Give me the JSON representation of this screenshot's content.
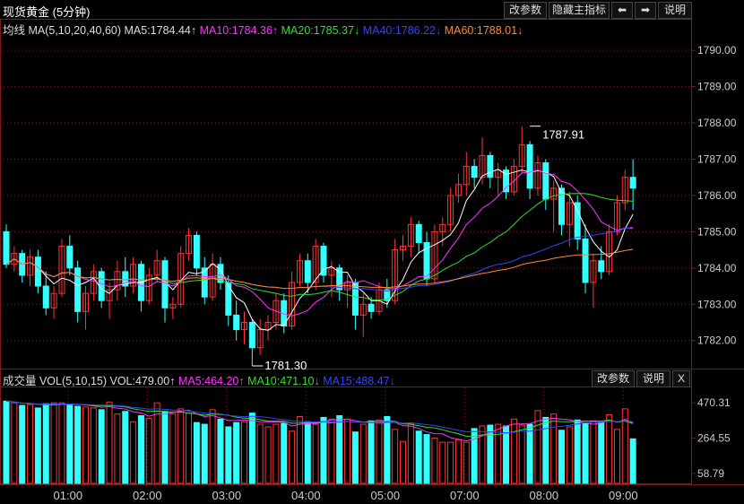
{
  "header": {
    "title": "现货黄金 (5分钟)",
    "buttons": {
      "params": "改参数",
      "hide_indicator": "隐藏主指标",
      "prev": "⬅",
      "next": "➡",
      "help": "说明"
    }
  },
  "ma_legend": {
    "prefix": "均线 MA(5,10,20,40,60)",
    "items": [
      {
        "text": "MA5:1784.44↑",
        "color": "#ffffff"
      },
      {
        "text": "MA10:1784.36↑",
        "color": "#ff33ff"
      },
      {
        "text": "MA20:1785.37↓",
        "color": "#33dd33"
      },
      {
        "text": "MA40:1786.22↓",
        "color": "#3344ff"
      },
      {
        "text": "MA60:1788.01↓",
        "color": "#ff8833"
      }
    ]
  },
  "vol_legend": {
    "prefix": "成交量 VOL(5,10,15) VOL:479.00↑",
    "items": [
      {
        "text": "MA5:464.20↑",
        "color": "#ff33ff"
      },
      {
        "text": "MA10:471.10↓",
        "color": "#33dd33"
      },
      {
        "text": "MA15:488.47↓",
        "color": "#3344ff"
      }
    ],
    "buttons": {
      "params": "改参数",
      "help": "说明",
      "close": "X"
    }
  },
  "colors": {
    "up": "#ff3333",
    "down": "#33ffff",
    "grid": "#7a1a1a",
    "axis_text": "#cccccc"
  },
  "chart_data": [
    {
      "type": "candlestick",
      "title": "现货黄金 (5分钟)",
      "ylim": [
        1781.3,
        1790.4
      ],
      "yticks": [
        "1790.00",
        "1789.00",
        "1788.00",
        "1787.00",
        "1786.00",
        "1785.00",
        "1784.00",
        "1783.00",
        "1782.00"
      ],
      "ytick_values": [
        1790,
        1789,
        1788,
        1787,
        1786,
        1785,
        1784,
        1783,
        1782
      ],
      "xticks": [
        "01:00",
        "02:00",
        "03:00",
        "04:00",
        "05:00",
        "07:00",
        "08:00",
        "09:00"
      ],
      "xtick_index": [
        8,
        18,
        28,
        38,
        48,
        58,
        68,
        78
      ],
      "annotations": [
        {
          "text": "1787.91",
          "index": 66,
          "value": 1787.91
        },
        {
          "text": "1781.30",
          "index": 31,
          "value": 1781.3
        }
      ],
      "ohlc": [
        [
          1785.0,
          1785.2,
          1784.0,
          1784.1
        ],
        [
          1784.1,
          1784.6,
          1783.9,
          1784.4
        ],
        [
          1784.4,
          1784.5,
          1783.6,
          1783.8
        ],
        [
          1783.8,
          1784.5,
          1783.5,
          1784.3
        ],
        [
          1784.3,
          1784.5,
          1783.3,
          1783.5
        ],
        [
          1783.5,
          1783.9,
          1782.7,
          1782.9
        ],
        [
          1782.9,
          1783.5,
          1782.6,
          1783.3
        ],
        [
          1783.3,
          1784.8,
          1783.2,
          1784.6
        ],
        [
          1784.6,
          1784.9,
          1783.8,
          1784.0
        ],
        [
          1784.0,
          1784.2,
          1782.5,
          1782.8
        ],
        [
          1782.8,
          1783.5,
          1782.3,
          1783.3
        ],
        [
          1783.3,
          1784.1,
          1783.1,
          1783.9
        ],
        [
          1783.9,
          1784.0,
          1782.9,
          1783.1
        ],
        [
          1783.1,
          1783.6,
          1782.6,
          1783.4
        ],
        [
          1783.4,
          1784.2,
          1783.1,
          1783.9
        ],
        [
          1783.9,
          1784.3,
          1783.2,
          1783.5
        ],
        [
          1783.5,
          1784.3,
          1783.3,
          1784.1
        ],
        [
          1784.1,
          1784.2,
          1782.8,
          1783.1
        ],
        [
          1783.1,
          1784.0,
          1783.0,
          1783.8
        ],
        [
          1783.8,
          1784.5,
          1783.6,
          1784.2
        ],
        [
          1784.2,
          1784.3,
          1782.5,
          1782.9
        ],
        [
          1782.9,
          1783.2,
          1782.6,
          1783.0
        ],
        [
          1783.0,
          1784.6,
          1782.9,
          1784.4
        ],
        [
          1784.4,
          1785.1,
          1784.2,
          1784.9
        ],
        [
          1784.9,
          1785.0,
          1783.8,
          1784.0
        ],
        [
          1784.0,
          1784.3,
          1783.0,
          1783.2
        ],
        [
          1783.2,
          1784.4,
          1783.1,
          1784.1
        ],
        [
          1784.1,
          1784.3,
          1783.4,
          1783.6
        ],
        [
          1783.6,
          1783.8,
          1782.4,
          1782.7
        ],
        [
          1782.7,
          1783.1,
          1782.0,
          1782.3
        ],
        [
          1782.3,
          1782.8,
          1781.9,
          1782.5
        ],
        [
          1782.5,
          1782.6,
          1781.3,
          1781.8
        ],
        [
          1781.8,
          1782.6,
          1781.6,
          1782.3
        ],
        [
          1782.3,
          1782.7,
          1782.0,
          1782.5
        ],
        [
          1782.5,
          1783.3,
          1782.3,
          1783.1
        ],
        [
          1783.1,
          1783.3,
          1782.2,
          1782.4
        ],
        [
          1782.4,
          1783.9,
          1782.3,
          1783.6
        ],
        [
          1783.6,
          1784.4,
          1783.5,
          1784.2
        ],
        [
          1784.2,
          1784.4,
          1783.3,
          1783.6
        ],
        [
          1783.6,
          1784.8,
          1783.4,
          1784.6
        ],
        [
          1784.6,
          1784.7,
          1783.6,
          1783.8
        ],
        [
          1783.8,
          1784.2,
          1783.2,
          1784.0
        ],
        [
          1784.0,
          1784.1,
          1783.1,
          1783.4
        ],
        [
          1783.4,
          1783.8,
          1782.9,
          1783.6
        ],
        [
          1783.6,
          1783.7,
          1782.3,
          1782.7
        ],
        [
          1782.7,
          1783.3,
          1782.1,
          1783.0
        ],
        [
          1783.0,
          1783.2,
          1782.6,
          1782.8
        ],
        [
          1782.8,
          1783.6,
          1782.7,
          1783.4
        ],
        [
          1783.4,
          1783.7,
          1782.9,
          1783.1
        ],
        [
          1783.1,
          1784.8,
          1783.0,
          1784.5
        ],
        [
          1784.5,
          1784.9,
          1784.2,
          1784.6
        ],
        [
          1784.6,
          1785.4,
          1784.3,
          1785.2
        ],
        [
          1785.2,
          1785.3,
          1784.4,
          1784.7
        ],
        [
          1784.7,
          1785.0,
          1783.5,
          1783.7
        ],
        [
          1783.7,
          1785.2,
          1783.6,
          1785.0
        ],
        [
          1785.0,
          1785.4,
          1784.6,
          1785.2
        ],
        [
          1785.2,
          1786.2,
          1785.0,
          1786.0
        ],
        [
          1786.0,
          1786.6,
          1785.8,
          1786.3
        ],
        [
          1786.3,
          1787.2,
          1786.0,
          1786.8
        ],
        [
          1786.8,
          1787.0,
          1786.2,
          1786.5
        ],
        [
          1786.5,
          1787.6,
          1786.3,
          1787.1
        ],
        [
          1787.1,
          1787.2,
          1786.2,
          1786.5
        ],
        [
          1786.5,
          1786.9,
          1786.0,
          1786.7
        ],
        [
          1786.7,
          1786.8,
          1785.9,
          1786.1
        ],
        [
          1786.1,
          1787.0,
          1786.0,
          1786.8
        ],
        [
          1786.8,
          1787.91,
          1786.6,
          1787.4
        ],
        [
          1787.4,
          1787.5,
          1785.9,
          1786.2
        ],
        [
          1786.2,
          1787.1,
          1786.0,
          1786.9
        ],
        [
          1786.9,
          1787.0,
          1785.6,
          1785.9
        ],
        [
          1785.9,
          1786.4,
          1785.0,
          1786.2
        ],
        [
          1786.2,
          1786.3,
          1784.9,
          1785.2
        ],
        [
          1785.2,
          1786.1,
          1784.6,
          1785.8
        ],
        [
          1785.8,
          1786.0,
          1784.5,
          1784.8
        ],
        [
          1784.8,
          1785.2,
          1783.3,
          1783.6
        ],
        [
          1783.6,
          1784.4,
          1782.9,
          1784.2
        ],
        [
          1784.2,
          1784.6,
          1783.7,
          1783.9
        ],
        [
          1783.9,
          1785.2,
          1783.8,
          1785.0
        ],
        [
          1785.0,
          1786.0,
          1784.9,
          1785.8
        ],
        [
          1785.8,
          1786.7,
          1785.6,
          1786.5
        ],
        [
          1786.5,
          1787.0,
          1785.6,
          1786.2
        ]
      ]
    },
    {
      "type": "bar",
      "title": "成交量 VOL(5,10,15)",
      "ylim": [
        0,
        560
      ],
      "yticks": [
        "470.31",
        "264.55",
        "58.79"
      ],
      "ytick_values": [
        470.31,
        264.55,
        58.79
      ],
      "values": [
        480,
        470,
        455,
        460,
        440,
        465,
        470,
        470,
        455,
        450,
        445,
        440,
        430,
        475,
        405,
        420,
        360,
        395,
        380,
        470,
        420,
        405,
        435,
        410,
        355,
        345,
        430,
        375,
        330,
        355,
        360,
        410,
        345,
        330,
        345,
        350,
        305,
        390,
        360,
        345,
        385,
        375,
        395,
        375,
        300,
        345,
        365,
        370,
        390,
        315,
        245,
        350,
        305,
        285,
        265,
        240,
        240,
        255,
        240,
        320,
        335,
        340,
        345,
        335,
        375,
        340,
        345,
        425,
        385,
        405,
        310,
        330,
        370,
        350,
        365,
        355,
        400,
        315,
        435,
        260
      ]
    }
  ]
}
